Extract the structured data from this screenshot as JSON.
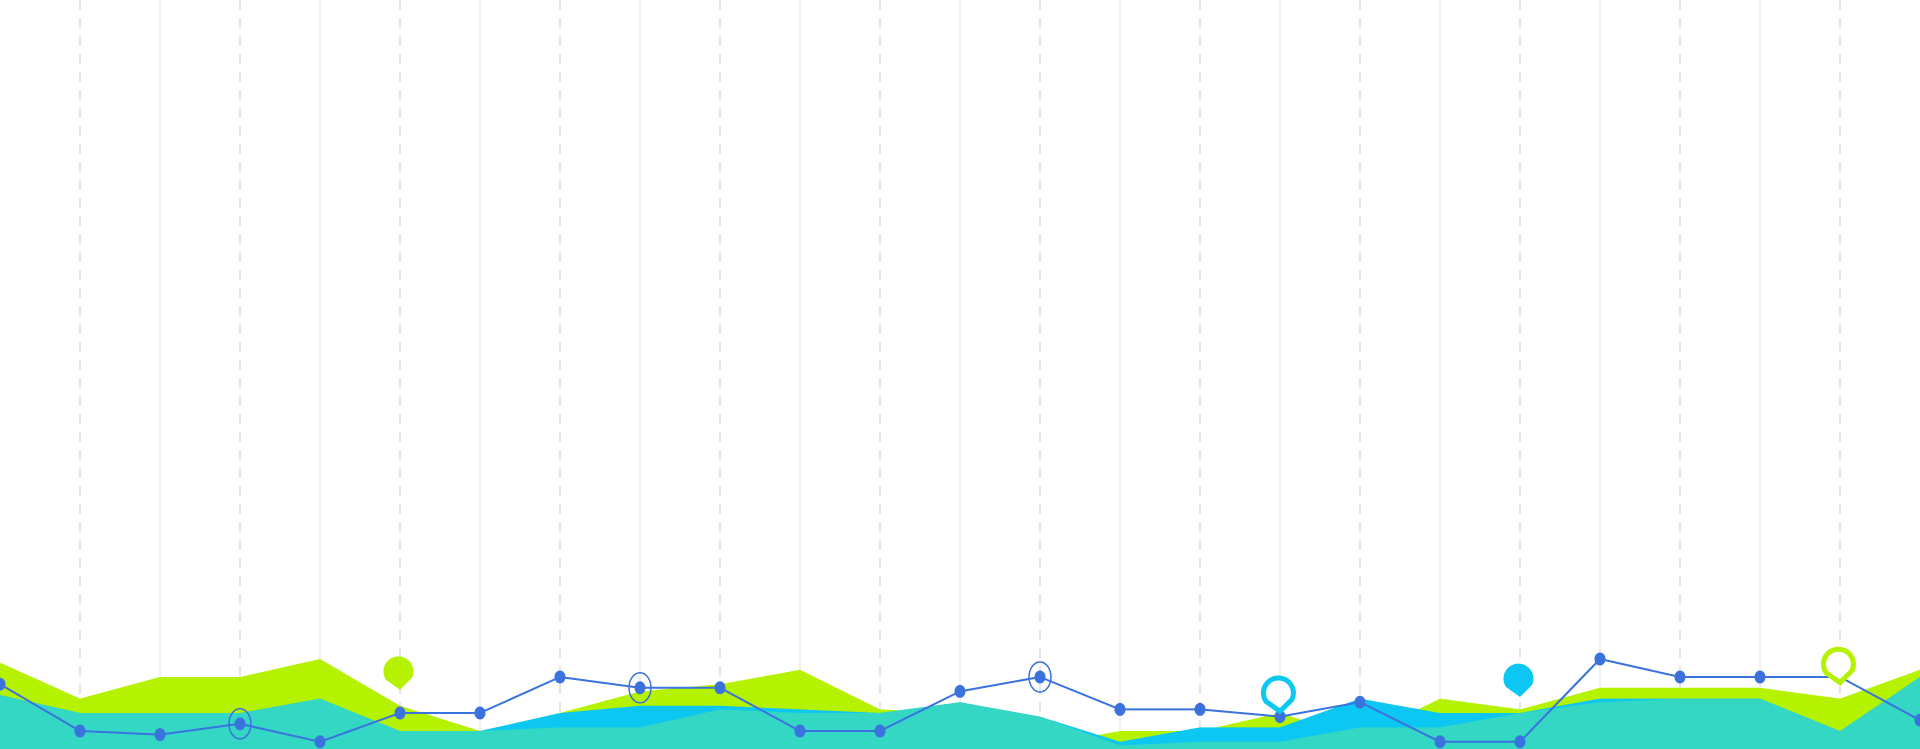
{
  "chart_data": {
    "type": "area",
    "x": [
      0,
      1,
      2,
      3,
      4,
      5,
      6,
      7,
      8,
      9,
      10,
      11,
      12,
      13,
      14,
      15,
      16,
      17,
      18,
      19,
      20,
      21,
      22,
      23,
      24
    ],
    "ylim": [
      0,
      100
    ],
    "grid": {
      "vertical": true,
      "horizontal": false
    },
    "colors": {
      "lime": "#b5f200",
      "cyan": "#0cc7f2",
      "teal": "#34d6c4",
      "line": "#3a72de",
      "grid_solid": "#ebebeb",
      "grid_dashed": "#dddddd"
    },
    "series": [
      {
        "key": "lime",
        "kind": "area",
        "values": [
          24,
          14,
          20,
          20,
          25,
          12,
          5,
          10,
          16,
          18,
          22,
          11,
          10,
          1,
          5,
          5,
          10,
          3,
          14,
          11,
          17,
          17,
          17,
          14,
          22
        ]
      },
      {
        "key": "cyan",
        "kind": "area",
        "values": [
          15,
          10,
          10,
          10,
          14,
          5,
          5,
          10,
          12,
          12,
          11,
          10,
          13,
          9,
          2,
          6,
          6,
          14,
          10,
          10,
          14,
          14,
          14,
          5,
          20
        ]
      },
      {
        "key": "teal",
        "kind": "area",
        "values": [
          15,
          10,
          10,
          10,
          14,
          5,
          5,
          6,
          6,
          11,
          10,
          10,
          13,
          9,
          1,
          2,
          2,
          6,
          6,
          10,
          13,
          14,
          14,
          5,
          20
        ]
      },
      {
        "key": "line",
        "kind": "line",
        "values": [
          18,
          5,
          4,
          7,
          2,
          10,
          10,
          20,
          17,
          17,
          5,
          5,
          16,
          20,
          11,
          11,
          9,
          13,
          2,
          2,
          25,
          20,
          20,
          20,
          8
        ]
      }
    ],
    "highlighted_points": [
      3,
      8,
      13
    ],
    "markers": [
      {
        "color": "lime",
        "style": "filled",
        "x": 5
      },
      {
        "color": "cyan",
        "style": "outline",
        "x": 16
      },
      {
        "color": "cyan",
        "style": "filled",
        "x": 19
      },
      {
        "color": "lime",
        "style": "outline",
        "x": 23
      }
    ]
  }
}
